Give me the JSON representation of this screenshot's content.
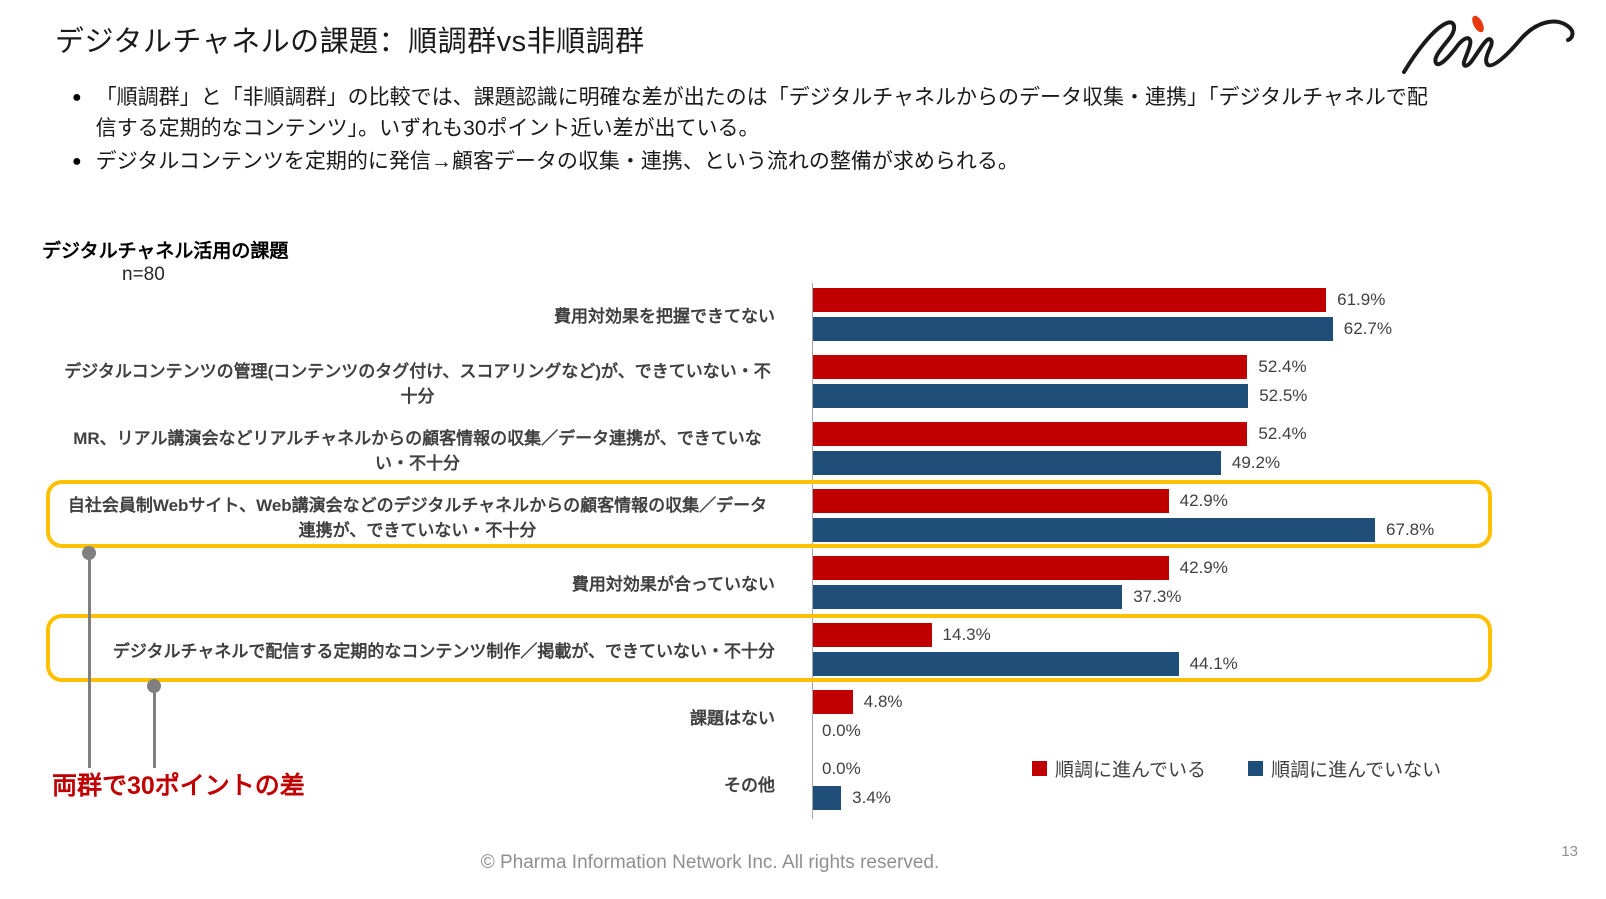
{
  "slide": {
    "title": "デジタルチャネルの課題：順調群vs非順調群",
    "bullets": [
      "「順調群」と「非順調群」の比較では、課題認識に明確な差が出たのは「デジタルチャネルからのデータ収集・連携」「デジタルチャネルで配信する定期的なコンテンツ」。いずれも30ポイント近い差が出ている。",
      "デジタルコンテンツを定期的に発信→顧客データの収集・連携、という流れの整備が求められる。"
    ],
    "annotation": "両群で30ポイントの差",
    "footer": "© Pharma Information Network Inc.  All rights reserved.",
    "page_number": "13",
    "logo_name": "pin-signature-logo"
  },
  "chart_data": {
    "type": "bar",
    "orientation": "horizontal",
    "title": "デジタルチャネル活用の課題",
    "sample_size_label": "n=80",
    "categories": [
      "費用対効果を把握できてない",
      "デジタルコンテンツの管理(コンテンツのタグ付け、スコアリングなど)が、できていない・不十分",
      "MR、リアル講演会などリアルチャネルからの顧客情報の収集／データ連携が、できていない・不十分",
      "自社会員制Webサイト、Web講演会などのデジタルチャネルからの顧客情報の収集／データ連携が、できていない・不十分",
      "費用対効果が合っていない",
      "デジタルチャネルで配信する定期的なコンテンツ制作／掲載が、できていない・不十分",
      "課題はない",
      "その他"
    ],
    "series": [
      {
        "name": "順調に進んでいる",
        "color": "#C00000",
        "values": [
          61.9,
          52.4,
          52.4,
          42.9,
          42.9,
          14.3,
          4.8,
          0.0
        ]
      },
      {
        "name": "順調に進んでいない",
        "color": "#1F4E79",
        "values": [
          62.7,
          52.5,
          49.2,
          67.8,
          37.3,
          44.1,
          0.0,
          3.4
        ]
      }
    ],
    "value_suffix": "%",
    "xlim": [
      0,
      100
    ],
    "grid": false,
    "legend_position": "bottom-right",
    "highlighted_categories": [
      3,
      5
    ],
    "highlight_color": "#FFC000"
  },
  "colors": {
    "series_ongoing": "#C00000",
    "series_not_ongoing": "#1F4E79",
    "highlight_box": "#FFC000",
    "callout_line": "#808080",
    "annotation_text": "#C00000",
    "axis_line": "#A6A6A6",
    "label_text": "#404040"
  }
}
